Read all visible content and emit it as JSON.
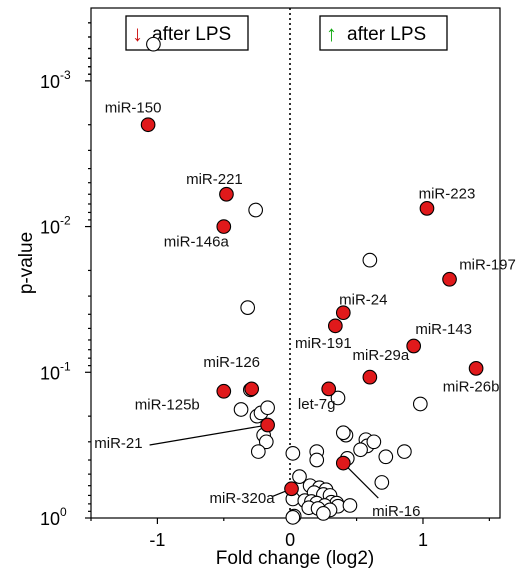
{
  "chart_data": {
    "type": "scatter",
    "title": "",
    "xlabel": "Fold change (log2)",
    "ylabel": "p-value",
    "xlim": [
      -1.5,
      1.58
    ],
    "ylim_log10": [
      0,
      -3.5
    ],
    "y_scale": "log-inverted",
    "x_ticks": [
      -1,
      0,
      1
    ],
    "y_ticks": [
      {
        "exp": -3,
        "base": "10",
        "sup": "-3"
      },
      {
        "exp": -2,
        "base": "10",
        "sup": "-2"
      },
      {
        "exp": -1,
        "base": "10",
        "sup": "-1"
      },
      {
        "exp": 0,
        "base": "10",
        "sup": "0"
      }
    ],
    "zero_line": "dotted vertical at x = 0",
    "legend": [
      {
        "arrow": "↓",
        "text": "after LPS",
        "color": "#cc1111"
      },
      {
        "arrow": "↑",
        "text": "after LPS",
        "color": "#11aa11"
      }
    ],
    "colors": {
      "highlight": "#e0191b",
      "highlight_stroke": "#000000",
      "other_fill": "#ffffff",
      "other_stroke": "#000000"
    },
    "highlighted": [
      {
        "name": "miR-150",
        "x": -1.07,
        "p": 0.002
      },
      {
        "name": "miR-221",
        "x": -0.48,
        "p": 0.006
      },
      {
        "name": "miR-146a",
        "x": -0.5,
        "p": 0.01
      },
      {
        "name": "miR-126",
        "x": -0.29,
        "p": 0.13
      },
      {
        "name": "miR-125b",
        "x": -0.5,
        "p": 0.135
      },
      {
        "name": "miR-21",
        "x": -0.17,
        "p": 0.23
      },
      {
        "name": "miR-320a",
        "x": 0.01,
        "p": 0.63
      },
      {
        "name": "miR-223",
        "x": 1.03,
        "p": 0.0075
      },
      {
        "name": "miR-197",
        "x": 1.2,
        "p": 0.023
      },
      {
        "name": "miR-24",
        "x": 0.4,
        "p": 0.039
      },
      {
        "name": "miR-191",
        "x": 0.34,
        "p": 0.048
      },
      {
        "name": "miR-143",
        "x": 0.93,
        "p": 0.066
      },
      {
        "name": "miR-29a",
        "x": 0.6,
        "p": 0.108
      },
      {
        "name": "let-7g",
        "x": 0.29,
        "p": 0.13
      },
      {
        "name": "miR-26b",
        "x": 1.4,
        "p": 0.094
      },
      {
        "name": "miR-16",
        "x": 0.4,
        "p": 0.42
      }
    ],
    "others": [
      {
        "x": -1.03,
        "p": 0.00056
      },
      {
        "x": -0.26,
        "p": 0.0077
      },
      {
        "x": 0.6,
        "p": 0.017
      },
      {
        "x": -0.32,
        "p": 0.036
      },
      {
        "x": -0.3,
        "p": 0.132
      },
      {
        "x": -0.37,
        "p": 0.18
      },
      {
        "x": -0.25,
        "p": 0.2
      },
      {
        "x": -0.22,
        "p": 0.19
      },
      {
        "x": -0.17,
        "p": 0.175
      },
      {
        "x": -0.2,
        "p": 0.27
      },
      {
        "x": -0.18,
        "p": 0.3
      },
      {
        "x": -0.24,
        "p": 0.35
      },
      {
        "x": 0.36,
        "p": 0.15
      },
      {
        "x": 0.98,
        "p": 0.165
      },
      {
        "x": 0.42,
        "p": 0.27
      },
      {
        "x": 0.4,
        "p": 0.26
      },
      {
        "x": 0.57,
        "p": 0.29
      },
      {
        "x": 0.58,
        "p": 0.32
      },
      {
        "x": 0.63,
        "p": 0.3
      },
      {
        "x": 0.53,
        "p": 0.34
      },
      {
        "x": 0.43,
        "p": 0.39
      },
      {
        "x": 0.2,
        "p": 0.35
      },
      {
        "x": 0.2,
        "p": 0.4
      },
      {
        "x": 0.02,
        "p": 0.36
      },
      {
        "x": 0.07,
        "p": 0.52
      },
      {
        "x": 0.72,
        "p": 0.38
      },
      {
        "x": 0.86,
        "p": 0.35
      },
      {
        "x": 0.69,
        "p": 0.57
      },
      {
        "x": 0.15,
        "p": 0.6
      },
      {
        "x": 0.22,
        "p": 0.62
      },
      {
        "x": 0.27,
        "p": 0.64
      },
      {
        "x": 0.18,
        "p": 0.67
      },
      {
        "x": 0.25,
        "p": 0.69
      },
      {
        "x": 0.3,
        "p": 0.7
      },
      {
        "x": 0.02,
        "p": 0.74
      },
      {
        "x": 0.11,
        "p": 0.76
      },
      {
        "x": 0.16,
        "p": 0.77
      },
      {
        "x": 0.2,
        "p": 0.79
      },
      {
        "x": 0.31,
        "p": 0.78
      },
      {
        "x": 0.35,
        "p": 0.79
      },
      {
        "x": 0.26,
        "p": 0.82
      },
      {
        "x": 0.36,
        "p": 0.83
      },
      {
        "x": 0.14,
        "p": 0.85
      },
      {
        "x": 0.21,
        "p": 0.86
      },
      {
        "x": 0.3,
        "p": 0.88
      },
      {
        "x": 0.45,
        "p": 0.82
      },
      {
        "x": 0.25,
        "p": 0.93
      },
      {
        "x": 0.03,
        "p": 0.97
      },
      {
        "x": 0.02,
        "p": 0.99
      }
    ]
  }
}
